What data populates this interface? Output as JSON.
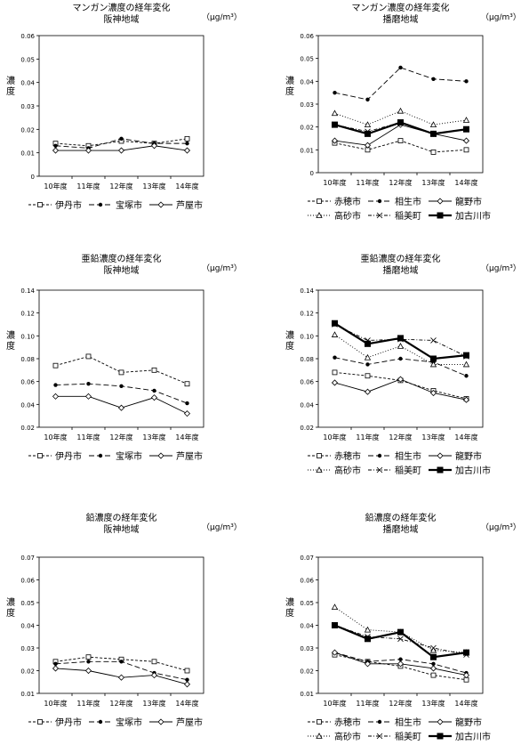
{
  "charts": [
    {
      "title": "マンガン濃度の経年変化",
      "subtitle": "阪神地域",
      "unit": "（μg/m³）",
      "ylabel": "濃度",
      "chart_data": {
        "type": "line",
        "categories": [
          "10年度",
          "11年度",
          "12年度",
          "13年度",
          "14年度"
        ],
        "ylim": [
          0,
          0.06
        ],
        "yticks": [
          "0",
          "0.01",
          "0.02",
          "0.03",
          "0.04",
          "0.05",
          "0.06"
        ],
        "series": [
          {
            "name": "伊丹市",
            "values": [
              0.014,
              0.013,
              0.015,
              0.014,
              0.016
            ],
            "marker": "square",
            "dash": "3,2"
          },
          {
            "name": "宝塚市",
            "values": [
              0.013,
              0.012,
              0.016,
              0.014,
              0.014
            ],
            "marker": "dot",
            "dash": "6,3"
          },
          {
            "name": "芦屋市",
            "values": [
              0.011,
              0.011,
              0.011,
              0.013,
              0.011
            ],
            "marker": "diamond",
            "dash": ""
          }
        ]
      }
    },
    {
      "title": "マンガン濃度の経年変化",
      "subtitle": "播磨地域",
      "unit": "（μg/m³）",
      "ylabel": "濃度",
      "chart_data": {
        "type": "line",
        "categories": [
          "10年度",
          "11年度",
          "12年度",
          "13年度",
          "14年度"
        ],
        "ylim": [
          0,
          0.06
        ],
        "yticks": [
          "0",
          "0.01",
          "0.02",
          "0.03",
          "0.04",
          "0.05",
          "0.06"
        ],
        "series": [
          {
            "name": "赤穂市",
            "values": [
              0.013,
              0.01,
              0.014,
              0.009,
              0.01
            ],
            "marker": "square",
            "dash": "3,2"
          },
          {
            "name": "相生市",
            "values": [
              0.035,
              0.032,
              0.046,
              0.041,
              0.04
            ],
            "marker": "dot",
            "dash": "6,3"
          },
          {
            "name": "龍野市",
            "values": [
              0.014,
              0.012,
              0.021,
              0.017,
              0.014
            ],
            "marker": "diamond",
            "dash": ""
          },
          {
            "name": "高砂市",
            "values": [
              0.026,
              0.021,
              0.027,
              0.021,
              0.023
            ],
            "marker": "triangle",
            "dash": "1,2"
          },
          {
            "name": "稲美町",
            "values": [
              0.021,
              0.018,
              0.022,
              0.017,
              0.019
            ],
            "marker": "x",
            "dash": "4,2,1,2"
          },
          {
            "name": "加古川市",
            "values": [
              0.021,
              0.017,
              0.022,
              0.017,
              0.019
            ],
            "marker": "bigsquare",
            "dash": "",
            "bold": true
          }
        ]
      }
    },
    {
      "title": "亜鉛濃度の経年変化",
      "subtitle": "阪神地域",
      "unit": "（μg/m³）",
      "ylabel": "濃度",
      "chart_data": {
        "type": "line",
        "categories": [
          "10年度",
          "11年度",
          "12年度",
          "13年度",
          "14年度"
        ],
        "ylim": [
          0.02,
          0.14
        ],
        "yticks": [
          "0.02",
          "0.04",
          "0.06",
          "0.08",
          "0.10",
          "0.12",
          "0.14"
        ],
        "series": [
          {
            "name": "伊丹市",
            "values": [
              0.074,
              0.082,
              0.068,
              0.07,
              0.058
            ],
            "marker": "square",
            "dash": "3,2"
          },
          {
            "name": "宝塚市",
            "values": [
              0.057,
              0.058,
              0.056,
              0.052,
              0.041
            ],
            "marker": "dot",
            "dash": "6,3"
          },
          {
            "name": "芦屋市",
            "values": [
              0.047,
              0.047,
              0.037,
              0.046,
              0.032
            ],
            "marker": "diamond",
            "dash": ""
          }
        ]
      }
    },
    {
      "title": "亜鉛濃度の経年変化",
      "subtitle": "播磨地域",
      "unit": "（μg/m³）",
      "ylabel": "濃度",
      "chart_data": {
        "type": "line",
        "categories": [
          "10年度",
          "11年度",
          "12年度",
          "13年度",
          "14年度"
        ],
        "ylim": [
          0.02,
          0.14
        ],
        "yticks": [
          "0.02",
          "0.04",
          "0.06",
          "0.08",
          "0.10",
          "0.12",
          "0.14"
        ],
        "series": [
          {
            "name": "赤穂市",
            "values": [
              0.068,
              0.065,
              0.061,
              0.052,
              0.045
            ],
            "marker": "square",
            "dash": "3,2"
          },
          {
            "name": "相生市",
            "values": [
              0.081,
              0.075,
              0.08,
              0.077,
              0.065
            ],
            "marker": "dot",
            "dash": "6,3"
          },
          {
            "name": "龍野市",
            "values": [
              0.059,
              0.051,
              0.062,
              0.05,
              0.044
            ],
            "marker": "diamond",
            "dash": ""
          },
          {
            "name": "高砂市",
            "values": [
              0.101,
              0.081,
              0.091,
              0.075,
              0.075
            ],
            "marker": "triangle",
            "dash": "1,2"
          },
          {
            "name": "稲美町",
            "values": [
              0.11,
              0.096,
              0.097,
              0.096,
              0.082
            ],
            "marker": "x",
            "dash": "4,2,1,2"
          },
          {
            "name": "加古川市",
            "values": [
              0.111,
              0.093,
              0.098,
              0.08,
              0.083
            ],
            "marker": "bigsquare",
            "dash": "",
            "bold": true
          }
        ]
      }
    },
    {
      "title": "鉛濃度の経年変化",
      "subtitle": "阪神地域",
      "unit": "（μg/m³）",
      "ylabel": "濃度",
      "chart_data": {
        "type": "line",
        "categories": [
          "10年度",
          "11年度",
          "12年度",
          "13年度",
          "14年度"
        ],
        "ylim": [
          0.01,
          0.07
        ],
        "yticks": [
          "0.01",
          "0.02",
          "0.03",
          "0.04",
          "0.05",
          "0.06",
          "0.07"
        ],
        "series": [
          {
            "name": "伊丹市",
            "values": [
              0.024,
              0.026,
              0.025,
              0.024,
              0.02
            ],
            "marker": "square",
            "dash": "3,2"
          },
          {
            "name": "宝塚市",
            "values": [
              0.023,
              0.024,
              0.024,
              0.019,
              0.016
            ],
            "marker": "dot",
            "dash": "6,3"
          },
          {
            "name": "芦屋市",
            "values": [
              0.021,
              0.02,
              0.017,
              0.018,
              0.014
            ],
            "marker": "diamond",
            "dash": ""
          }
        ]
      }
    },
    {
      "title": "鉛濃度の経年変化",
      "subtitle": "播磨地域",
      "unit": "（μg/m³）",
      "ylabel": "濃度",
      "chart_data": {
        "type": "line",
        "categories": [
          "10年度",
          "11年度",
          "12年度",
          "13年度",
          "14年度"
        ],
        "ylim": [
          0.01,
          0.07
        ],
        "yticks": [
          "0.01",
          "0.02",
          "0.03",
          "0.04",
          "0.05",
          "0.06",
          "0.07"
        ],
        "series": [
          {
            "name": "赤穂市",
            "values": [
              0.027,
              0.024,
              0.022,
              0.018,
              0.016
            ],
            "marker": "square",
            "dash": "3,2"
          },
          {
            "name": "相生市",
            "values": [
              0.028,
              0.024,
              0.025,
              0.023,
              0.019
            ],
            "marker": "dot",
            "dash": "6,3"
          },
          {
            "name": "龍野市",
            "values": [
              0.028,
              0.023,
              0.023,
              0.021,
              0.018
            ],
            "marker": "diamond",
            "dash": ""
          },
          {
            "name": "高砂市",
            "values": [
              0.048,
              0.038,
              0.037,
              0.029,
              0.028
            ],
            "marker": "triangle",
            "dash": "1,2"
          },
          {
            "name": "稲美町",
            "values": [
              0.04,
              0.035,
              0.034,
              0.03,
              0.027
            ],
            "marker": "x",
            "dash": "4,2,1,2"
          },
          {
            "name": "加古川市",
            "values": [
              0.04,
              0.034,
              0.037,
              0.026,
              0.028
            ],
            "marker": "bigsquare",
            "dash": "",
            "bold": true
          }
        ]
      }
    }
  ]
}
